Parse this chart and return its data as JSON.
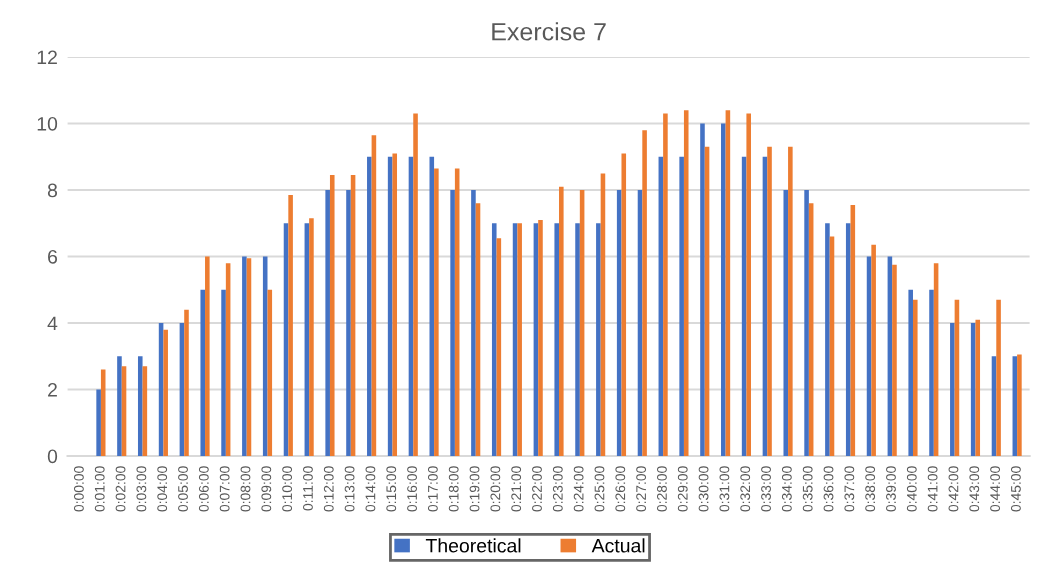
{
  "chart_data": {
    "type": "bar",
    "title": "Exercise 7",
    "categories": [
      "0:00:00",
      "0:01:00",
      "0:02:00",
      "0:03:00",
      "0:04:00",
      "0:05:00",
      "0:06:00",
      "0:07:00",
      "0:08:00",
      "0:09:00",
      "0:10:00",
      "0:11:00",
      "0:12:00",
      "0:13:00",
      "0:14:00",
      "0:15:00",
      "0:16:00",
      "0:17:00",
      "0:18:00",
      "0:19:00",
      "0:20:00",
      "0:21:00",
      "0:22:00",
      "0:23:00",
      "0:24:00",
      "0:25:00",
      "0:26:00",
      "0:27:00",
      "0:28:00",
      "0:29:00",
      "0:30:00",
      "0:31:00",
      "0:32:00",
      "0:33:00",
      "0:34:00",
      "0:35:00",
      "0:36:00",
      "0:37:00",
      "0:38:00",
      "0:39:00",
      "0:40:00",
      "0:41:00",
      "0:42:00",
      "0:43:00",
      "0:44:00",
      "0:45:00"
    ],
    "series": [
      {
        "name": "Theoretical",
        "color": "#4472c4",
        "values": [
          0,
          2,
          3,
          3,
          4,
          4,
          5,
          5,
          6,
          6,
          7,
          7,
          8,
          8,
          9,
          9,
          9,
          9,
          8,
          8,
          7,
          7,
          7,
          7,
          7,
          7,
          8,
          8,
          9,
          9,
          10,
          10,
          9,
          9,
          8,
          8,
          7,
          7,
          6,
          6,
          5,
          5,
          4,
          4,
          3,
          3
        ]
      },
      {
        "name": "Actual",
        "color": "#ed7d31",
        "values": [
          0,
          2.6,
          2.7,
          2.7,
          3.8,
          4.4,
          6.0,
          5.8,
          5.95,
          5.0,
          7.85,
          7.15,
          8.45,
          8.45,
          9.65,
          9.1,
          10.3,
          8.65,
          8.65,
          7.6,
          6.55,
          7.0,
          7.1,
          8.1,
          8.0,
          8.5,
          9.1,
          9.8,
          10.3,
          10.4,
          9.3,
          10.4,
          10.3,
          9.3,
          9.3,
          7.6,
          6.6,
          7.55,
          6.35,
          5.75,
          4.7,
          5.8,
          4.7,
          4.1,
          4.7,
          3.05
        ]
      }
    ],
    "ylim": [
      0,
      12
    ],
    "yticks": [
      0,
      2,
      4,
      6,
      8,
      10,
      12
    ],
    "grid": "y",
    "legend": "bottom"
  }
}
